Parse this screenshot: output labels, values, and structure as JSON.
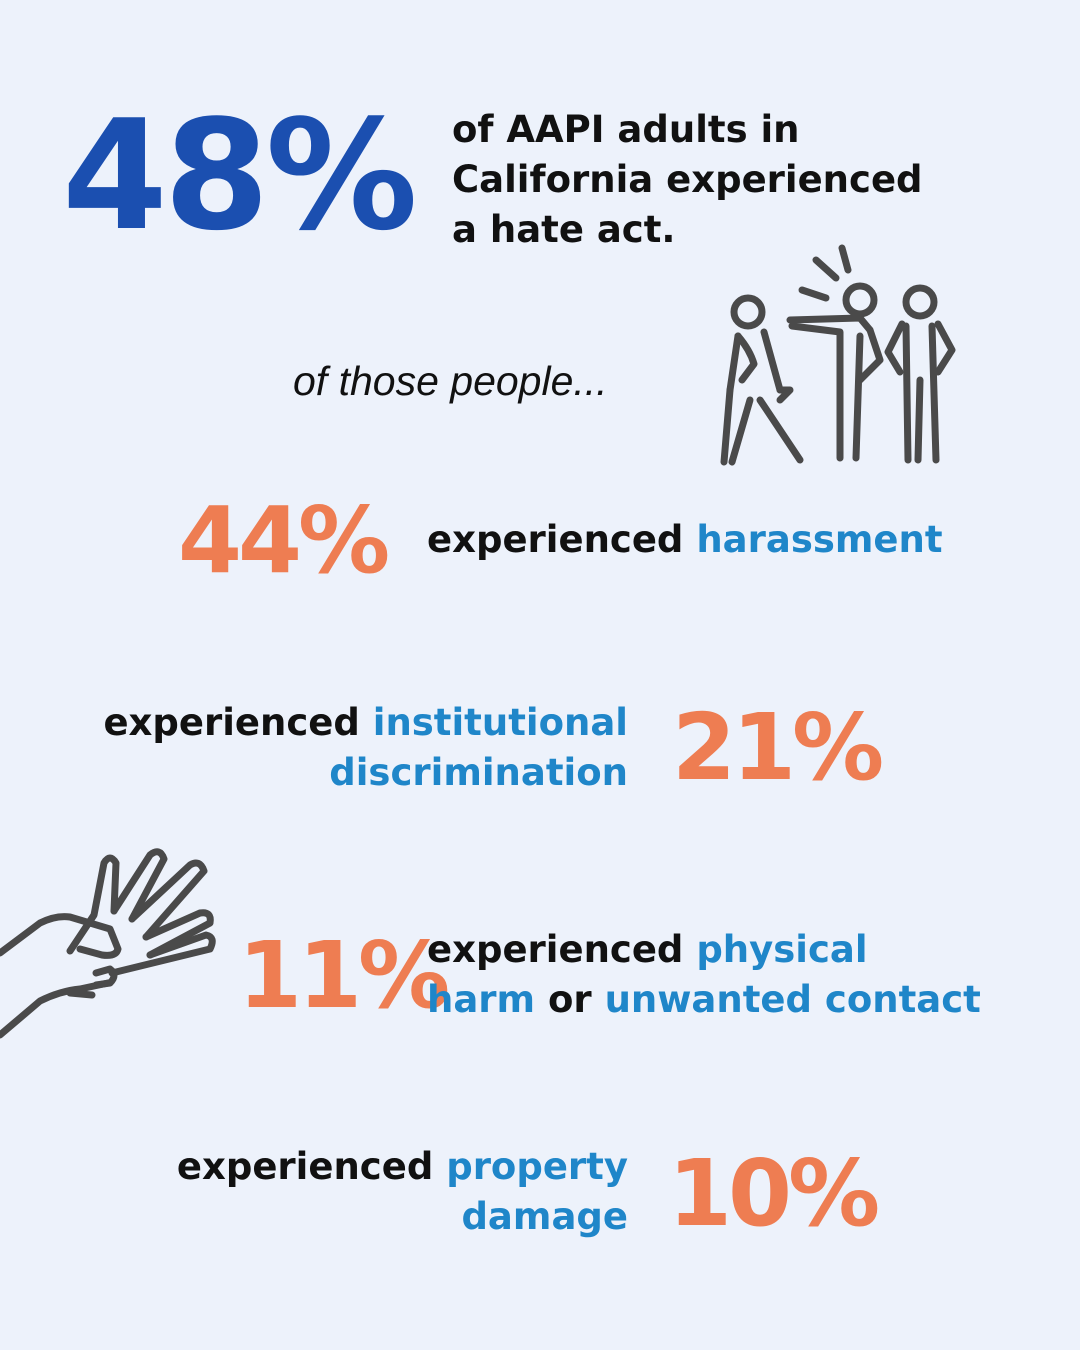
{
  "headline": {
    "percent": "48%",
    "lines": [
      "of AAPI adults in",
      "California experienced",
      "a hate act."
    ]
  },
  "subheading": "of those people...",
  "stats": [
    {
      "percent": "44%",
      "prefix": "experienced",
      "highlight": "harassment"
    },
    {
      "percent": "21%",
      "prefix": "experienced",
      "highlight_line1": "institutional",
      "highlight_line2": "discrimination"
    },
    {
      "percent": "11%",
      "prefix": "experienced",
      "highlight_line1": "physical",
      "line2_part1": "harm",
      "line2_connector": "or",
      "line2_part2": "unwanted contact"
    },
    {
      "percent": "10%",
      "prefix": "experienced",
      "highlight_line1": "property",
      "highlight_line2": "damage"
    }
  ],
  "icons": {
    "group": "confrontation-figures-icon",
    "hand": "grabbing-hand-icon"
  },
  "colors": {
    "background": "#edf2fb",
    "headline_blue": "#1b4fb0",
    "highlight_blue": "#1f86c9",
    "percent_orange": "#ee7d52",
    "text_black": "#111111",
    "icon_gray": "#4a4a4a"
  }
}
